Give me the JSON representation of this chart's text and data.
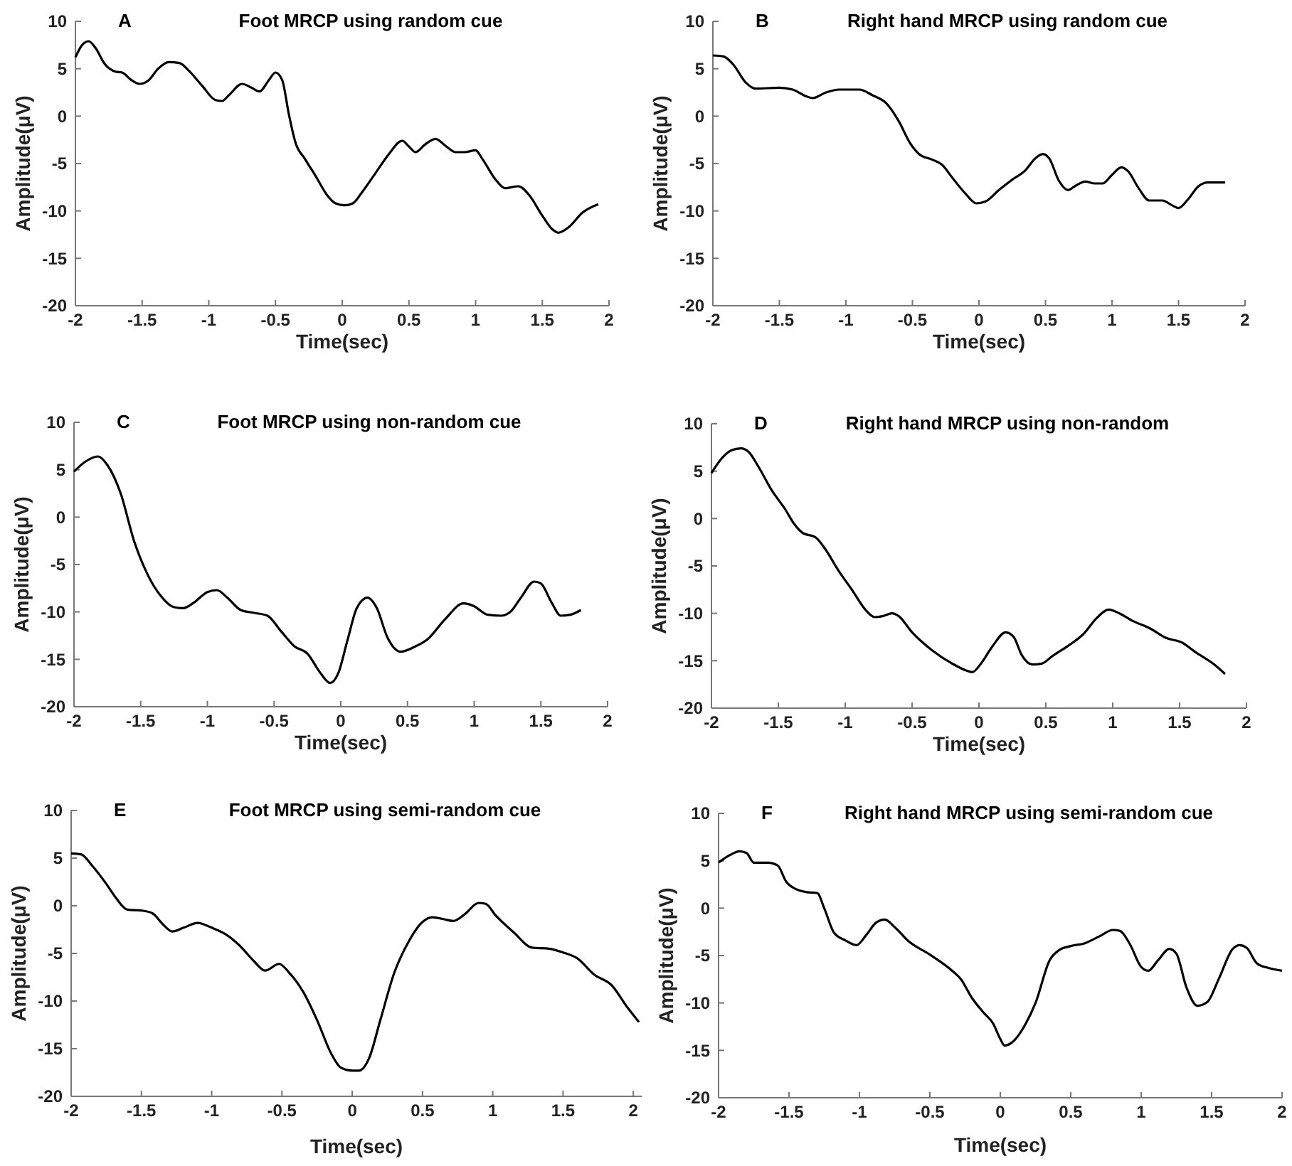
{
  "chart_data": [
    {
      "type": "line",
      "title": "Foot MRCP using random cue",
      "annotations": [
        "A"
      ],
      "xlabel": "Time(sec)",
      "ylabel": "Amplitude(μV)",
      "xlim": [
        -2,
        2
      ],
      "ylim": [
        -20,
        10
      ],
      "xticks": [
        -2,
        -1.5,
        -1,
        -0.5,
        0,
        0.5,
        1,
        1.5,
        2
      ],
      "yticks": [
        -20,
        -15,
        -10,
        -5,
        0,
        5,
        10
      ],
      "grid": false,
      "series": [
        {
          "color": "#000000",
          "x": [
            -2,
            -1.95,
            -1.9,
            -1.85,
            -1.78,
            -1.7,
            -1.65,
            -1.58,
            -1.52,
            -1.45,
            -1.38,
            -1.3,
            -1.22,
            -1.15,
            -1.05,
            -0.95,
            -0.9,
            -0.85,
            -0.75,
            -0.68,
            -0.62,
            -0.55,
            -0.5,
            -0.45,
            -0.4,
            -0.35,
            -0.28,
            -0.2,
            -0.12,
            -0.05,
            0.02,
            0.08,
            0.15,
            0.25,
            0.35,
            0.45,
            0.5,
            0.55,
            0.62,
            0.7,
            0.78,
            0.85,
            0.92,
            1,
            1.05,
            1.15,
            1.22,
            1.32,
            1.4,
            1.5,
            1.58,
            1.62,
            1.7,
            1.8,
            1.92
          ],
          "values": [
            6.2,
            7.5,
            7.9,
            7.2,
            5.5,
            4.7,
            4.6,
            3.8,
            3.4,
            3.8,
            5,
            5.7,
            5.6,
            4.8,
            3.2,
            1.7,
            1.6,
            2.2,
            3.4,
            3,
            2.6,
            3.8,
            4.6,
            3.8,
            0.2,
            -2.8,
            -4.5,
            -6.3,
            -8.2,
            -9.2,
            -9.4,
            -9.2,
            -8,
            -6,
            -4,
            -2.6,
            -3.2,
            -3.8,
            -3,
            -2.4,
            -3.2,
            -3.8,
            -3.8,
            -3.6,
            -4.5,
            -6.7,
            -7.6,
            -7.4,
            -8.3,
            -10.5,
            -12,
            -12.3,
            -11.7,
            -10.2,
            -9.3
          ]
        }
      ]
    },
    {
      "type": "line",
      "title": "Right hand MRCP using random cue",
      "annotations": [
        "B"
      ],
      "xlabel": "Time(sec)",
      "ylabel": "Amplitude(μV)",
      "xlim": [
        -2,
        2
      ],
      "ylim": [
        -20,
        10
      ],
      "xticks": [
        -2,
        -1.5,
        -1,
        -0.5,
        0,
        0.5,
        1,
        1.5,
        2
      ],
      "yticks": [
        -20,
        -15,
        -10,
        -5,
        0,
        5,
        10
      ],
      "grid": false,
      "series": [
        {
          "color": "#000000",
          "x": [
            -2,
            -1.92,
            -1.85,
            -1.75,
            -1.68,
            -1.5,
            -1.4,
            -1.3,
            -1.25,
            -1.15,
            -1.05,
            -0.9,
            -0.8,
            -0.7,
            -0.6,
            -0.52,
            -0.45,
            -0.35,
            -0.28,
            -0.2,
            -0.1,
            -0.02,
            0.05,
            0.15,
            0.25,
            0.35,
            0.42,
            0.48,
            0.53,
            0.6,
            0.67,
            0.72,
            0.8,
            0.87,
            0.93,
            1,
            1.07,
            1.12,
            1.2,
            1.28,
            1.38,
            1.45,
            1.5,
            1.57,
            1.65,
            1.72,
            1.85
          ],
          "values": [
            6.4,
            6.3,
            5.5,
            3.5,
            2.9,
            3,
            2.8,
            2.1,
            1.9,
            2.5,
            2.8,
            2.8,
            2.2,
            1.4,
            -0.6,
            -2.8,
            -4,
            -4.6,
            -5.1,
            -6.5,
            -8.2,
            -9.2,
            -9,
            -7.8,
            -6.7,
            -5.7,
            -4.5,
            -4,
            -4.5,
            -6.8,
            -7.8,
            -7.4,
            -6.9,
            -7.1,
            -7.1,
            -6.2,
            -5.4,
            -5.8,
            -7.6,
            -8.9,
            -8.9,
            -9.4,
            -9.7,
            -8.8,
            -7.4,
            -7,
            -7
          ]
        }
      ]
    },
    {
      "type": "line",
      "title": "Foot MRCP using non-random cue",
      "annotations": [
        "C"
      ],
      "xlabel": "Time(sec)",
      "ylabel": "Amplitude(μV)",
      "xlim": [
        -2,
        2
      ],
      "ylim": [
        -20,
        10
      ],
      "xticks": [
        -2,
        -1.5,
        -1,
        -0.5,
        0,
        0.5,
        1,
        1.5,
        2
      ],
      "yticks": [
        -20,
        -15,
        -10,
        -5,
        0,
        5,
        10
      ],
      "grid": false,
      "series": [
        {
          "color": "#000000",
          "x": [
            -2,
            -1.92,
            -1.82,
            -1.75,
            -1.65,
            -1.55,
            -1.45,
            -1.35,
            -1.25,
            -1.18,
            -1.1,
            -1,
            -0.93,
            -0.85,
            -0.75,
            -0.65,
            -0.55,
            -0.45,
            -0.35,
            -0.25,
            -0.15,
            -0.08,
            -0.02,
            0.05,
            0.12,
            0.2,
            0.27,
            0.35,
            0.45,
            0.55,
            0.65,
            0.78,
            0.92,
            1,
            1.1,
            1.2,
            1.27,
            1.35,
            1.45,
            1.5,
            1.58,
            1.65,
            1.72,
            1.8
          ],
          "values": [
            4.8,
            5.8,
            6.4,
            5.5,
            2.5,
            -2.5,
            -6,
            -8.3,
            -9.5,
            -9.6,
            -9,
            -7.9,
            -7.7,
            -8.5,
            -9.8,
            -10.1,
            -10.4,
            -12,
            -13.6,
            -14.4,
            -16.5,
            -17.5,
            -16.5,
            -13,
            -9.6,
            -8.5,
            -9.6,
            -12.7,
            -14.2,
            -13.7,
            -12.9,
            -10.8,
            -9.1,
            -9.4,
            -10.3,
            -10.4,
            -10,
            -8.5,
            -6.8,
            -7,
            -9,
            -10.4,
            -10.3,
            -9.8
          ]
        }
      ]
    },
    {
      "type": "line",
      "title": "Right hand MRCP using non-random",
      "annotations": [
        "D"
      ],
      "xlabel": "Time(sec)",
      "ylabel": "Amplitude(μV)",
      "xlim": [
        -2,
        2
      ],
      "ylim": [
        -20,
        10
      ],
      "xticks": [
        -2,
        -1.5,
        -1,
        -0.5,
        0,
        0.5,
        1,
        1.5,
        2
      ],
      "yticks": [
        -20,
        -15,
        -10,
        -5,
        0,
        5,
        10
      ],
      "grid": false,
      "series": [
        {
          "color": "#000000",
          "x": [
            -2,
            -1.92,
            -1.85,
            -1.78,
            -1.72,
            -1.65,
            -1.55,
            -1.45,
            -1.38,
            -1.32,
            -1.22,
            -1.15,
            -1.05,
            -0.95,
            -0.85,
            -0.78,
            -0.72,
            -0.65,
            -0.6,
            -0.5,
            -0.35,
            -0.2,
            -0.1,
            -0.05,
            0.02,
            0.1,
            0.2,
            0.26,
            0.32,
            0.4,
            0.47,
            0.55,
            0.68,
            0.78,
            0.88,
            0.97,
            1.05,
            1.15,
            1.28,
            1.4,
            1.52,
            1.62,
            1.75,
            1.84
          ],
          "values": [
            4.8,
            6.4,
            7.2,
            7.4,
            7,
            5.5,
            3,
            1,
            -0.6,
            -1.5,
            -2,
            -3.2,
            -5.5,
            -7.5,
            -9.6,
            -10.4,
            -10.3,
            -10,
            -10.3,
            -12,
            -13.9,
            -15.3,
            -16,
            -16.2,
            -15.2,
            -13.5,
            -12,
            -12.5,
            -14.4,
            -15.4,
            -15.3,
            -14.5,
            -13.3,
            -12.2,
            -10.5,
            -9.6,
            -10,
            -10.8,
            -11.6,
            -12.6,
            -13.1,
            -14.1,
            -15.3,
            -16.4
          ]
        }
      ]
    },
    {
      "type": "line",
      "title": "Foot MRCP using semi-random cue",
      "annotations": [
        "E"
      ],
      "xlabel": "Time(sec)",
      "ylabel": "Amplitude(μV)",
      "xlim": [
        -2,
        2.06
      ],
      "ylim": [
        -20,
        10
      ],
      "xticks": [
        -2,
        -1.5,
        -1,
        -0.5,
        0,
        0.5,
        1,
        1.5,
        2
      ],
      "yticks": [
        -20,
        -15,
        -10,
        -5,
        0,
        5,
        10
      ],
      "grid": false,
      "series": [
        {
          "color": "#000000",
          "x": [
            -2,
            -1.93,
            -1.85,
            -1.75,
            -1.68,
            -1.6,
            -1.5,
            -1.42,
            -1.35,
            -1.28,
            -1.2,
            -1.1,
            -1,
            -0.9,
            -0.8,
            -0.7,
            -0.62,
            -0.52,
            -0.45,
            -0.35,
            -0.25,
            -0.15,
            -0.08,
            0,
            0.05,
            0.12,
            0.2,
            0.3,
            0.4,
            0.5,
            0.57,
            0.65,
            0.72,
            0.8,
            0.9,
            0.95,
            1.02,
            1.15,
            1.28,
            1.4,
            1.5,
            1.6,
            1.72,
            1.85,
            1.95,
            2.04
          ],
          "values": [
            5.5,
            5.4,
            4.2,
            2.3,
            0.8,
            -0.4,
            -0.5,
            -0.8,
            -1.9,
            -2.7,
            -2.3,
            -1.8,
            -2.3,
            -3,
            -4.2,
            -5.8,
            -6.8,
            -6.1,
            -7,
            -9,
            -12,
            -15.5,
            -17,
            -17.3,
            -17.3,
            -16,
            -12,
            -7,
            -3.8,
            -1.7,
            -1.2,
            -1.4,
            -1.6,
            -0.9,
            0.3,
            0.2,
            -1,
            -2.8,
            -4.4,
            -4.5,
            -4.9,
            -5.5,
            -7.2,
            -8.4,
            -10.5,
            -12.2
          ]
        }
      ]
    },
    {
      "type": "line",
      "title": "Right hand MRCP using semi-random cue",
      "annotations": [
        "F"
      ],
      "xlabel": "Time(sec)",
      "ylabel": "Amplitude(μV)",
      "xlim": [
        -2,
        2
      ],
      "ylim": [
        -20,
        10
      ],
      "xticks": [
        -2,
        -1.5,
        -1,
        -0.5,
        0,
        0.5,
        1,
        1.5,
        2
      ],
      "yticks": [
        -20,
        -15,
        -10,
        -5,
        0,
        5,
        10
      ],
      "grid": false,
      "series": [
        {
          "color": "#000000",
          "x": [
            -2,
            -1.92,
            -1.85,
            -1.8,
            -1.75,
            -1.65,
            -1.58,
            -1.52,
            -1.45,
            -1.38,
            -1.3,
            -1.25,
            -1.18,
            -1.1,
            -1.02,
            -0.95,
            -0.88,
            -0.82,
            -0.75,
            -0.65,
            -0.5,
            -0.35,
            -0.28,
            -0.2,
            -0.12,
            -0.05,
            0,
            0.03,
            0.08,
            0.18,
            0.25,
            0.35,
            0.42,
            0.5,
            0.6,
            0.7,
            0.8,
            0.85,
            0.92,
            1,
            1.05,
            1.12,
            1.2,
            1.25,
            1.32,
            1.4,
            1.47,
            1.55,
            1.65,
            1.7,
            1.75,
            1.82,
            1.9,
            2
          ],
          "values": [
            4.8,
            5.6,
            6,
            5.8,
            4.8,
            4.8,
            4.5,
            2.8,
            2,
            1.7,
            1.6,
            0,
            -2.6,
            -3.4,
            -3.9,
            -2.8,
            -1.5,
            -1.2,
            -2,
            -3.5,
            -4.9,
            -6.5,
            -7.5,
            -9.5,
            -11,
            -12.2,
            -13.8,
            -14.5,
            -14.2,
            -12.2,
            -10,
            -5.5,
            -4.4,
            -4,
            -3.7,
            -3,
            -2.3,
            -2.4,
            -3.8,
            -6.2,
            -6.6,
            -5.5,
            -4.3,
            -4.8,
            -8.3,
            -10.3,
            -9.9,
            -7.5,
            -4.3,
            -3.9,
            -4.2,
            -5.8,
            -6.3,
            -6.6
          ]
        }
      ]
    }
  ]
}
